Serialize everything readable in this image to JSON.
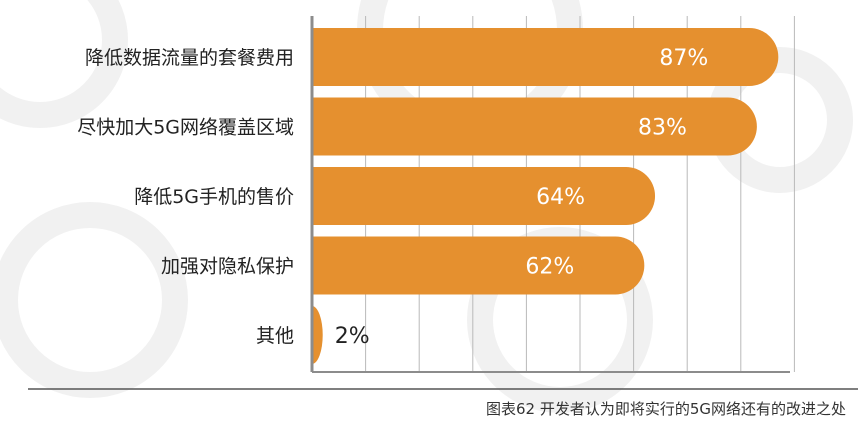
{
  "colors": {
    "bar": "#E5902F",
    "grid": "#B9B9B9",
    "axis": "#8C8C8C",
    "category_text": "#222222",
    "value_text_inside": "#ffffff",
    "value_text_outside": "#222222",
    "watermark": "#F1F1F1"
  },
  "caption": "图表62  开发者认为即将实行的5G网络还有的改进之处",
  "chart_data": {
    "type": "bar",
    "orientation": "horizontal",
    "categories": [
      "降低数据流量的套餐费用",
      "尽快加大5G网络覆盖区域",
      "降低5G手机的售价",
      "加强对隐私保护",
      "其他"
    ],
    "values": [
      87,
      83,
      64,
      62,
      2
    ],
    "value_labels": [
      "87%",
      "83%",
      "64%",
      "62%",
      "2%"
    ],
    "xlim": [
      0,
      100
    ],
    "grid": true,
    "legend": "none"
  }
}
